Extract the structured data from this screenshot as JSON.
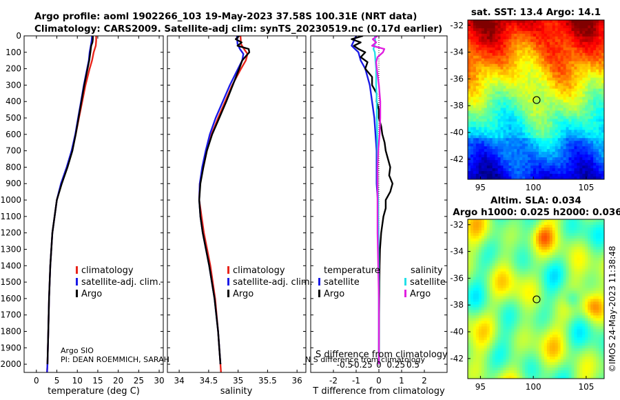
{
  "figure": {
    "title_line1": "Argo profile: aoml 1902266_103 19-May-2023 37.58S 100.31E (NRT data)",
    "title_line2": "Climatology: CARS2009. Satellite-adj clim: synTS_20230519.nc (0.17d earlier)",
    "credit": "©IMOS 24-May-2023 11:38:48",
    "argo_source": "Argo SIO",
    "pi_text": "PI: DEAN ROEMMICH, SARAH",
    "overlap_text": "N S difference from climatology"
  },
  "colors": {
    "climatology": "#e8241a",
    "satellite": "#1a1ae6",
    "argo": "#000000",
    "sat_diff": "#22e0e8",
    "argo_sal_diff": "#e020e0"
  },
  "chart_data": [
    {
      "type": "line",
      "name": "temperature-profile",
      "xlabel": "temperature (deg C)",
      "ylabel": "",
      "xlim": [
        -3,
        31
      ],
      "ylim": [
        2050,
        0
      ],
      "xticks": [
        0,
        5,
        10,
        15,
        20,
        25,
        30
      ],
      "yticks": [
        0,
        100,
        200,
        300,
        400,
        500,
        600,
        700,
        800,
        900,
        1000,
        1100,
        1200,
        1300,
        1400,
        1500,
        1600,
        1700,
        1800,
        1900,
        2000
      ],
      "legend": [
        "climatology",
        "satellite-adj. clim.",
        "Argo"
      ],
      "series": [
        {
          "name": "climatology",
          "color_key": "climatology",
          "depth": [
            0,
            30,
            60,
            100,
            150,
            200,
            300,
            400,
            500,
            600,
            700,
            800,
            900,
            1000,
            1200,
            1400,
            1600,
            1800,
            2000,
            2050
          ],
          "values": [
            14.6,
            14.6,
            14.5,
            14.0,
            13.6,
            13.0,
            12.0,
            11.2,
            10.4,
            9.6,
            8.7,
            7.5,
            6.1,
            5.0,
            3.9,
            3.4,
            3.1,
            2.9,
            2.7,
            2.6
          ]
        },
        {
          "name": "satellite-adj. clim.",
          "color_key": "satellite",
          "depth": [
            0,
            30,
            60,
            100,
            150,
            200,
            300,
            400,
            500,
            600,
            700,
            800,
            900,
            1000,
            1200,
            1400,
            1600,
            1800,
            2000,
            2050
          ],
          "values": [
            13.6,
            13.5,
            13.3,
            13.0,
            12.8,
            12.4,
            11.6,
            10.9,
            10.2,
            9.5,
            8.6,
            7.4,
            6.0,
            5.0,
            3.9,
            3.4,
            3.1,
            2.9,
            2.7,
            2.6
          ]
        },
        {
          "name": "Argo",
          "color_key": "argo",
          "depth": [
            0,
            20,
            40,
            60,
            80,
            100,
            150,
            200,
            300,
            400,
            500,
            600,
            700,
            800,
            900,
            1000,
            1200,
            1400,
            1600,
            1800,
            2000
          ],
          "values": [
            13.8,
            13.8,
            13.7,
            13.4,
            13.3,
            13.2,
            12.9,
            12.5,
            11.7,
            11.0,
            10.3,
            9.6,
            8.8,
            7.6,
            6.2,
            5.0,
            3.9,
            3.4,
            3.1,
            2.9,
            2.7
          ]
        }
      ]
    },
    {
      "type": "line",
      "name": "salinity-profile",
      "xlabel": "salinity",
      "ylabel": "",
      "xlim": [
        33.8,
        36.15
      ],
      "ylim": [
        2050,
        0
      ],
      "xticks": [
        34,
        34.5,
        35,
        35.5,
        36
      ],
      "legend": [
        "climatology",
        "satellite-adj. clim.",
        "Argo"
      ],
      "series": [
        {
          "name": "climatology",
          "color_key": "climatology",
          "depth": [
            0,
            50,
            80,
            110,
            150,
            200,
            300,
            400,
            500,
            600,
            700,
            800,
            900,
            1000,
            1100,
            1200,
            1400,
            1600,
            1800,
            2000,
            2050
          ],
          "values": [
            35.04,
            35.05,
            35.1,
            35.16,
            35.13,
            35.05,
            34.9,
            34.78,
            34.66,
            34.55,
            34.47,
            34.41,
            34.35,
            34.34,
            34.38,
            34.42,
            34.53,
            34.61,
            34.66,
            34.7,
            34.71
          ]
        },
        {
          "name": "satellite-adj. clim.",
          "color_key": "satellite",
          "depth": [
            0,
            50,
            80,
            110,
            150,
            200,
            300,
            400,
            500,
            600,
            700,
            800,
            900,
            1000,
            1100,
            1200,
            1400,
            1600,
            1800,
            2000
          ],
          "values": [
            34.98,
            34.99,
            35.03,
            35.09,
            35.07,
            35.0,
            34.86,
            34.74,
            34.62,
            34.52,
            34.45,
            34.39,
            34.35,
            34.34,
            34.36,
            34.4,
            34.51,
            34.6,
            34.66,
            34.7
          ]
        },
        {
          "name": "Argo",
          "color_key": "argo",
          "depth": [
            0,
            20,
            40,
            60,
            80,
            100,
            120,
            150,
            200,
            300,
            400,
            500,
            600,
            700,
            800,
            900,
            1000,
            1100,
            1200,
            1400,
            1600,
            1800,
            2000
          ],
          "values": [
            35.02,
            34.96,
            35.06,
            34.99,
            35.18,
            35.19,
            35.14,
            35.07,
            35.02,
            34.91,
            34.8,
            34.68,
            34.56,
            34.47,
            34.41,
            34.36,
            34.34,
            34.36,
            34.4,
            34.51,
            34.6,
            34.66,
            34.7
          ]
        }
      ]
    },
    {
      "type": "line",
      "name": "difference-profile",
      "xlabel": "T difference from climatology",
      "overlap_label": "S difference from climatology",
      "xlim": [
        -3,
        3
      ],
      "xticks": [
        -2,
        -1,
        0,
        1,
        2
      ],
      "xticklabels": [
        "-2",
        "-1",
        "0",
        "1",
        "2"
      ],
      "xlim_top": [
        -1,
        1
      ],
      "xticks_top": [
        -0.5,
        -0.25,
        0,
        0.25,
        0.5
      ],
      "xticklabels_top": [
        "-0.5",
        "-0.25",
        "0",
        "0.25",
        "0.5"
      ],
      "ylim": [
        2050,
        0
      ],
      "legend_temperature_title": "temperature",
      "legend_salinity_title": "salinity",
      "legend_temperature": [
        "satellite",
        "Argo"
      ],
      "legend_salinity": [
        "satellite",
        "Argo"
      ],
      "series": [
        {
          "name": "T satellite",
          "color_key": "satellite",
          "depth": [
            0,
            30,
            60,
            100,
            150,
            200,
            300,
            400,
            500,
            700,
            900,
            1000,
            1200,
            1500,
            1800,
            2000
          ],
          "values": [
            -1.0,
            -1.1,
            -1.2,
            -0.9,
            -0.8,
            -0.6,
            -0.4,
            -0.3,
            -0.2,
            -0.1,
            -0.1,
            -0.05,
            -0.02,
            0,
            0,
            0
          ]
        },
        {
          "name": "T Argo",
          "color_key": "argo",
          "depth": [
            0,
            20,
            40,
            60,
            80,
            100,
            130,
            160,
            200,
            250,
            300,
            350,
            400,
            450,
            500,
            550,
            600,
            650,
            700,
            750,
            800,
            850,
            900,
            950,
            1000,
            1050,
            1100,
            1200,
            1300,
            1400,
            1500,
            1700,
            2000
          ],
          "values": [
            -0.7,
            -1.2,
            -0.8,
            -1.1,
            -0.9,
            -0.6,
            -0.8,
            -0.5,
            -0.6,
            -0.3,
            -0.3,
            -0.1,
            -0.1,
            0,
            0,
            0.1,
            0.15,
            0.25,
            0.3,
            0.4,
            0.5,
            0.45,
            0.6,
            0.5,
            0.3,
            0.3,
            0.2,
            0.1,
            0.05,
            0.03,
            0.02,
            0.01,
            0
          ]
        },
        {
          "name": "S satellite",
          "color_key": "sat_diff",
          "depth": [
            0,
            40,
            80,
            100,
            150,
            200,
            300,
            400,
            500,
            700,
            900,
            1000,
            1200,
            1500,
            1800,
            2000
          ],
          "values": [
            -0.06,
            -0.05,
            -0.08,
            -0.06,
            -0.05,
            -0.04,
            -0.04,
            -0.03,
            -0.03,
            -0.02,
            -0.02,
            -0.01,
            -0.01,
            0,
            0,
            0
          ]
        },
        {
          "name": "S Argo",
          "color_key": "argo_sal_diff",
          "depth": [
            0,
            20,
            40,
            60,
            80,
            100,
            130,
            160,
            200,
            300,
            400,
            500,
            600,
            700,
            800,
            900,
            1000,
            1100,
            1200,
            1400,
            1600,
            2000
          ],
          "values": [
            -0.02,
            -0.09,
            -0.04,
            -0.1,
            0.08,
            0.06,
            -0.02,
            -0.04,
            -0.03,
            0.0,
            0.02,
            0.02,
            0.01,
            -0.01,
            -0.02,
            -0.02,
            -0.02,
            -0.02,
            -0.02,
            -0.01,
            0,
            0
          ]
        }
      ]
    },
    {
      "type": "heatmap",
      "name": "sst-map",
      "title": "sat. SST: 13.4 Argo: 14.1",
      "xticks": [
        95,
        100,
        105
      ],
      "yticks": [
        -32,
        -34,
        -36,
        -38,
        -40,
        -42
      ],
      "xlim": [
        93.8,
        106.7
      ],
      "ylim": [
        -43.5,
        -31.6
      ],
      "marker": {
        "lon": 100.31,
        "lat": -37.58
      }
    },
    {
      "type": "heatmap",
      "name": "sla-map",
      "title_line1": "Altim. SLA: 0.034",
      "title_line2": "Argo h1000: 0.025 h2000: 0.036",
      "xticks": [
        95,
        100,
        105
      ],
      "yticks": [
        -32,
        -34,
        -36,
        -38,
        -40,
        -42
      ],
      "xlim": [
        93.8,
        106.7
      ],
      "ylim": [
        -43.5,
        -31.6
      ],
      "marker": {
        "lon": 100.31,
        "lat": -37.58
      }
    }
  ]
}
